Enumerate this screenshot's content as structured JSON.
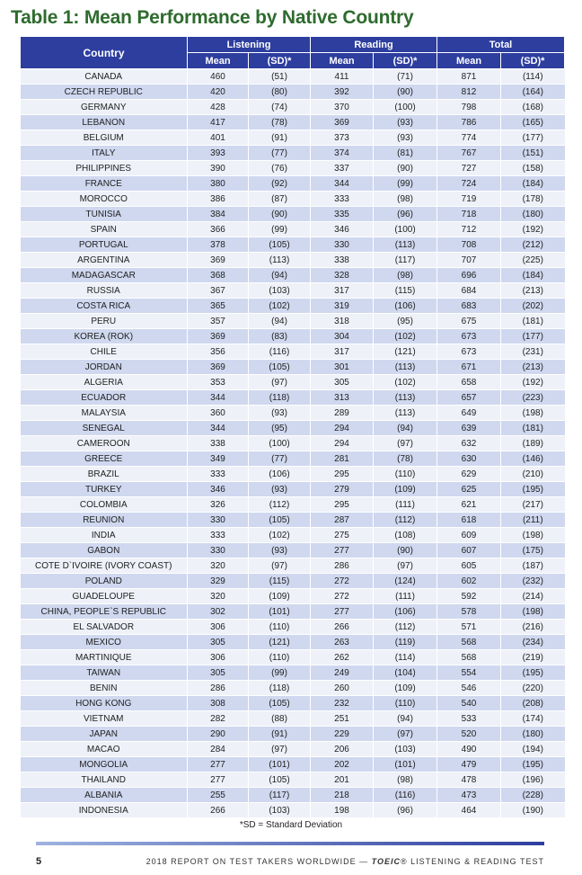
{
  "title": "Table 1: Mean Performance by Native Country",
  "headers": {
    "country": "Country",
    "listening": "Listening",
    "reading": "Reading",
    "total": "Total",
    "mean": "Mean",
    "sd": "(SD)*"
  },
  "rows": [
    [
      "CANADA",
      "460",
      "(51)",
      "411",
      "(71)",
      "871",
      "(114)"
    ],
    [
      "CZECH REPUBLIC",
      "420",
      "(80)",
      "392",
      "(90)",
      "812",
      "(164)"
    ],
    [
      "GERMANY",
      "428",
      "(74)",
      "370",
      "(100)",
      "798",
      "(168)"
    ],
    [
      "LEBANON",
      "417",
      "(78)",
      "369",
      "(93)",
      "786",
      "(165)"
    ],
    [
      "BELGIUM",
      "401",
      "(91)",
      "373",
      "(93)",
      "774",
      "(177)"
    ],
    [
      "ITALY",
      "393",
      "(77)",
      "374",
      "(81)",
      "767",
      "(151)"
    ],
    [
      "PHILIPPINES",
      "390",
      "(76)",
      "337",
      "(90)",
      "727",
      "(158)"
    ],
    [
      "FRANCE",
      "380",
      "(92)",
      "344",
      "(99)",
      "724",
      "(184)"
    ],
    [
      "MOROCCO",
      "386",
      "(87)",
      "333",
      "(98)",
      "719",
      "(178)"
    ],
    [
      "TUNISIA",
      "384",
      "(90)",
      "335",
      "(96)",
      "718",
      "(180)"
    ],
    [
      "SPAIN",
      "366",
      "(99)",
      "346",
      "(100)",
      "712",
      "(192)"
    ],
    [
      "PORTUGAL",
      "378",
      "(105)",
      "330",
      "(113)",
      "708",
      "(212)"
    ],
    [
      "ARGENTINA",
      "369",
      "(113)",
      "338",
      "(117)",
      "707",
      "(225)"
    ],
    [
      "MADAGASCAR",
      "368",
      "(94)",
      "328",
      "(98)",
      "696",
      "(184)"
    ],
    [
      "RUSSIA",
      "367",
      "(103)",
      "317",
      "(115)",
      "684",
      "(213)"
    ],
    [
      "COSTA RICA",
      "365",
      "(102)",
      "319",
      "(106)",
      "683",
      "(202)"
    ],
    [
      "PERU",
      "357",
      "(94)",
      "318",
      "(95)",
      "675",
      "(181)"
    ],
    [
      "KOREA (ROK)",
      "369",
      "(83)",
      "304",
      "(102)",
      "673",
      "(177)"
    ],
    [
      "CHILE",
      "356",
      "(116)",
      "317",
      "(121)",
      "673",
      "(231)"
    ],
    [
      "JORDAN",
      "369",
      "(105)",
      "301",
      "(113)",
      "671",
      "(213)"
    ],
    [
      "ALGERIA",
      "353",
      "(97)",
      "305",
      "(102)",
      "658",
      "(192)"
    ],
    [
      "ECUADOR",
      "344",
      "(118)",
      "313",
      "(113)",
      "657",
      "(223)"
    ],
    [
      "MALAYSIA",
      "360",
      "(93)",
      "289",
      "(113)",
      "649",
      "(198)"
    ],
    [
      "SENEGAL",
      "344",
      "(95)",
      "294",
      "(94)",
      "639",
      "(181)"
    ],
    [
      "CAMEROON",
      "338",
      "(100)",
      "294",
      "(97)",
      "632",
      "(189)"
    ],
    [
      "GREECE",
      "349",
      "(77)",
      "281",
      "(78)",
      "630",
      "(146)"
    ],
    [
      "BRAZIL",
      "333",
      "(106)",
      "295",
      "(110)",
      "629",
      "(210)"
    ],
    [
      "TURKEY",
      "346",
      "(93)",
      "279",
      "(109)",
      "625",
      "(195)"
    ],
    [
      "COLOMBIA",
      "326",
      "(112)",
      "295",
      "(111)",
      "621",
      "(217)"
    ],
    [
      "REUNION",
      "330",
      "(105)",
      "287",
      "(112)",
      "618",
      "(211)"
    ],
    [
      "INDIA",
      "333",
      "(102)",
      "275",
      "(108)",
      "609",
      "(198)"
    ],
    [
      "GABON",
      "330",
      "(93)",
      "277",
      "(90)",
      "607",
      "(175)"
    ],
    [
      "COTE D`IVOIRE (IVORY COAST)",
      "320",
      "(97)",
      "286",
      "(97)",
      "605",
      "(187)"
    ],
    [
      "POLAND",
      "329",
      "(115)",
      "272",
      "(124)",
      "602",
      "(232)"
    ],
    [
      "GUADELOUPE",
      "320",
      "(109)",
      "272",
      "(111)",
      "592",
      "(214)"
    ],
    [
      "CHINA, PEOPLE`S REPUBLIC",
      "302",
      "(101)",
      "277",
      "(106)",
      "578",
      "(198)"
    ],
    [
      "EL SALVADOR",
      "306",
      "(110)",
      "266",
      "(112)",
      "571",
      "(216)"
    ],
    [
      "MEXICO",
      "305",
      "(121)",
      "263",
      "(119)",
      "568",
      "(234)"
    ],
    [
      "MARTINIQUE",
      "306",
      "(110)",
      "262",
      "(114)",
      "568",
      "(219)"
    ],
    [
      "TAIWAN",
      "305",
      "(99)",
      "249",
      "(104)",
      "554",
      "(195)"
    ],
    [
      "BENIN",
      "286",
      "(118)",
      "260",
      "(109)",
      "546",
      "(220)"
    ],
    [
      "HONG KONG",
      "308",
      "(105)",
      "232",
      "(110)",
      "540",
      "(208)"
    ],
    [
      "VIETNAM",
      "282",
      "(88)",
      "251",
      "(94)",
      "533",
      "(174)"
    ],
    [
      "JAPAN",
      "290",
      "(91)",
      "229",
      "(97)",
      "520",
      "(180)"
    ],
    [
      "MACAO",
      "284",
      "(97)",
      "206",
      "(103)",
      "490",
      "(194)"
    ],
    [
      "MONGOLIA",
      "277",
      "(101)",
      "202",
      "(101)",
      "479",
      "(195)"
    ],
    [
      "THAILAND",
      "277",
      "(105)",
      "201",
      "(98)",
      "478",
      "(196)"
    ],
    [
      "ALBANIA",
      "255",
      "(117)",
      "218",
      "(116)",
      "473",
      "(228)"
    ],
    [
      "INDONESIA",
      "266",
      "(103)",
      "198",
      "(96)",
      "464",
      "(190)"
    ]
  ],
  "footnote": "*SD = Standard Deviation",
  "footer": {
    "page_number": "5",
    "report_text": "2018 REPORT ON TEST TAKERS WORLDWIDE — ",
    "brand": "TOEIC",
    "suffix": "® LISTENING & READING TEST"
  },
  "colors": {
    "title": "#2e6b2e",
    "header_bg": "#2d3e9f",
    "row_light": "#eef1f8",
    "row_dark": "#cfd8ef"
  }
}
